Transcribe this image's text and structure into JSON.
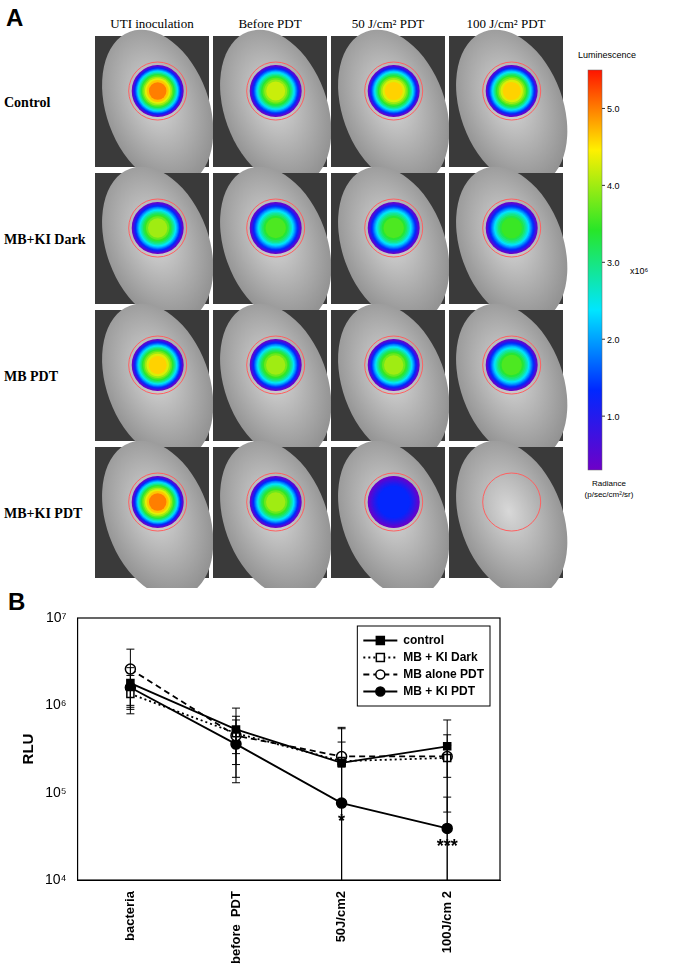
{
  "panel_labels": [
    "A",
    "B"
  ],
  "image_grid": {
    "columns": [
      "UTI inoculation",
      "Before PDT",
      "50 J/cm² PDT",
      "100 J/cm² PDT"
    ],
    "rows": [
      {
        "label": "Control",
        "signal": [
          5.0,
          4.2,
          4.6,
          4.6
        ]
      },
      {
        "label": "MB+KI Dark",
        "signal": [
          4.0,
          3.6,
          3.6,
          3.5
        ]
      },
      {
        "label": "MB PDT",
        "signal": [
          4.6,
          4.0,
          4.0,
          3.6
        ]
      },
      {
        "label": "MB+KI PDT",
        "signal": [
          5.0,
          4.0,
          1.3,
          0
        ]
      }
    ],
    "colorbar": {
      "title": "Luminescence",
      "multiplier": "x10⁶",
      "unit": "Radiance (p/sec/cm²/sr)",
      "range": [
        0.3,
        5.5
      ],
      "ticks": [
        {
          "value": 1,
          "label": "1.0"
        },
        {
          "value": 2,
          "label": "2.0"
        },
        {
          "value": 3,
          "label": "3.0"
        },
        {
          "value": 4,
          "label": "4.0"
        },
        {
          "value": 5,
          "label": "5.0"
        }
      ]
    }
  },
  "chart_data": {
    "type": "line",
    "y_label": "RLU",
    "log": "y",
    "grid": false,
    "legend": "upper right",
    "categories": [
      "bacteria",
      "before  PDT",
      "50J/cm2",
      "100J/cm 2"
    ],
    "ylim": [
      10000,
      10000000
    ],
    "yticks": [
      {
        "value": 10000,
        "label": "10⁴"
      },
      {
        "value": 100000,
        "label": "10⁵"
      },
      {
        "value": 1000000,
        "label": "10⁶"
      },
      {
        "value": 10000000,
        "label": "10⁷"
      }
    ],
    "series": [
      {
        "name": "control",
        "color": "#000000",
        "marker": "square",
        "line_style": "solid",
        "values": [
          1800000,
          530000,
          220000,
          340000
        ],
        "errors": [
          900000,
          400000,
          320000,
          340000
        ]
      },
      {
        "name": "MB + KI Dark",
        "color": "#000000",
        "marker": "open-square",
        "line_style": "dotted",
        "values": [
          1350000,
          480000,
          230000,
          250000
        ],
        "errors": [
          400000,
          200000,
          150000,
          100000
        ]
      },
      {
        "name": "MB alone PDT",
        "color": "#000000",
        "marker": "open-circle",
        "line_style": "dashed",
        "values": [
          2600000,
          450000,
          260000,
          260000
        ],
        "errors": [
          1800000,
          300000,
          300000,
          200000
        ]
      },
      {
        "name": "MB + KI PDT",
        "color": "#000000",
        "marker": "circle",
        "line_style": "solid",
        "values": [
          1600000,
          360000,
          76000,
          39000
        ],
        "errors": [
          600000,
          150000,
          120000,
          50000
        ]
      }
    ],
    "annotations": [
      {
        "series": "MB + KI PDT",
        "category": "50J/cm2",
        "text": "*"
      },
      {
        "series": "MB + KI PDT",
        "category": "100J/cm 2",
        "text": "***"
      }
    ]
  }
}
